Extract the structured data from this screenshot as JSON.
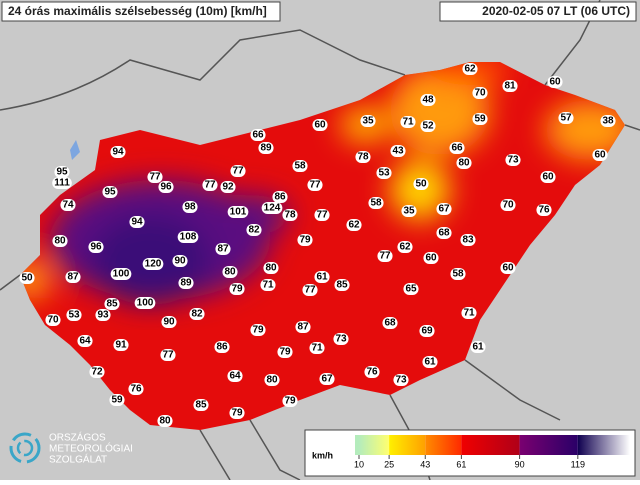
{
  "header": {
    "title": "24 órás maximális szélsebesség (10m) [km/h]",
    "time": "2020-02-05 07 LT (06 UTC)"
  },
  "logo": {
    "lines": [
      "ORSZÁGOS",
      "METEOROLÓGIAI",
      "SZOLGÁLAT"
    ]
  },
  "stations": {
    "values": [
      62,
      81,
      60,
      48,
      70,
      60,
      35,
      71,
      52,
      59,
      57,
      38,
      66,
      89,
      43,
      66,
      78,
      80,
      73,
      60,
      77,
      53,
      95,
      94,
      77,
      58,
      111,
      77,
      92,
      77,
      96,
      50,
      60,
      95,
      86,
      74,
      98,
      101,
      124,
      78,
      77,
      58,
      35,
      67,
      70,
      76,
      94,
      62,
      82,
      80,
      96,
      108,
      87,
      79,
      68,
      83,
      62,
      77,
      60,
      120,
      90,
      50,
      100,
      80,
      80,
      61,
      58,
      60,
      87,
      89,
      79,
      71,
      77,
      85,
      65,
      85,
      100,
      93,
      53,
      82,
      90,
      70,
      71,
      68,
      87,
      79,
      69,
      73,
      64,
      91,
      86,
      79,
      71,
      61,
      77,
      61,
      72,
      64,
      80,
      67,
      76,
      73,
      76,
      59,
      79,
      85,
      79,
      80
    ]
  },
  "legend": {
    "unit": "km/h",
    "lim": [
      8,
      145
    ],
    "ticks": [
      10,
      25,
      43,
      61,
      90,
      119
    ],
    "colors": [
      [
        "#b4ecbc",
        "#ffff70"
      ],
      [
        "#fff000",
        "#ffa000"
      ],
      [
        "#ff8c00",
        "#ff2a00"
      ],
      [
        "#f00000",
        "#b00018"
      ],
      [
        "#7a0070",
        "#2a0068"
      ],
      [
        "#100050",
        "#ffffff"
      ]
    ]
  }
}
